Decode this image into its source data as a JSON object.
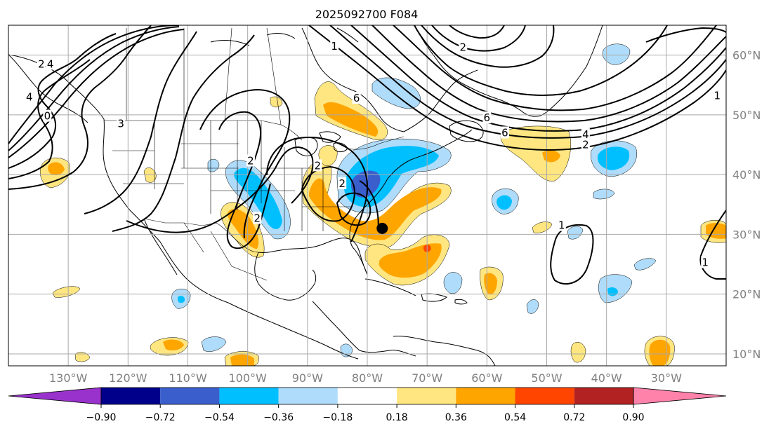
{
  "title": "2025092700 F084",
  "lon_ticks": [
    {
      "lon": -130,
      "label": "130°W"
    },
    {
      "lon": -120,
      "label": "120°W"
    },
    {
      "lon": -110,
      "label": "110°W"
    },
    {
      "lon": -100,
      "label": "100°W"
    },
    {
      "lon": -90,
      "label": "90°W"
    },
    {
      "lon": -80,
      "label": "80°W"
    },
    {
      "lon": -70,
      "label": "70°W"
    },
    {
      "lon": -60,
      "label": "60°W"
    },
    {
      "lon": -50,
      "label": "50°W"
    },
    {
      "lon": -40,
      "label": "40°W"
    },
    {
      "lon": -30,
      "label": "30°W"
    }
  ],
  "lat_ticks": [
    {
      "lat": 60,
      "label": "60°N"
    },
    {
      "lat": 50,
      "label": "50°N"
    },
    {
      "lat": 40,
      "label": "40°N"
    },
    {
      "lat": 30,
      "label": "30°N"
    },
    {
      "lat": 20,
      "label": "20°N"
    },
    {
      "lat": 10,
      "label": "10°N"
    }
  ],
  "extent": {
    "lon_min": -140,
    "lon_max": -20,
    "lat_min": 8,
    "lat_max": 65
  },
  "colorbar": {
    "levels": [
      "−0.90",
      "−0.72",
      "−0.54",
      "−0.36",
      "−0.18",
      "0.18",
      "0.36",
      "0.54",
      "0.72",
      "0.90"
    ],
    "colors": [
      "#9932cc",
      "#00008b",
      "#3a5fcd",
      "#00bfff",
      "#afdcfa",
      "#ffffff",
      "#ffe680",
      "#ffa500",
      "#ff4500",
      "#b22222",
      "#ff82ab"
    ]
  },
  "contour_labels": [
    {
      "text": "4",
      "lon": -133,
      "lat": 58.5
    },
    {
      "text": "2",
      "lon": -134.5,
      "lat": 58.5
    },
    {
      "text": "4",
      "lon": -136.5,
      "lat": 53
    },
    {
      "text": "0",
      "lon": -133.5,
      "lat": 49.8
    },
    {
      "text": "3",
      "lon": -121.2,
      "lat": 48.5
    },
    {
      "text": "2",
      "lon": -99.5,
      "lat": 42.3
    },
    {
      "text": "2",
      "lon": -98.4,
      "lat": 32.7
    },
    {
      "text": "2",
      "lon": -88.3,
      "lat": 41.5
    },
    {
      "text": "2",
      "lon": -84.2,
      "lat": 38.5
    },
    {
      "text": "6",
      "lon": -81.8,
      "lat": 52.8
    },
    {
      "text": "6",
      "lon": -60,
      "lat": 49.5
    },
    {
      "text": "6",
      "lon": -57,
      "lat": 47
    },
    {
      "text": "4",
      "lon": -43.5,
      "lat": 46.7
    },
    {
      "text": "2",
      "lon": -43.5,
      "lat": 45
    },
    {
      "text": "1",
      "lon": -21.5,
      "lat": 53.2
    },
    {
      "text": "2",
      "lon": -64,
      "lat": 61.3
    },
    {
      "text": "1",
      "lon": -47.5,
      "lat": 31.5
    },
    {
      "text": "1",
      "lon": -23.5,
      "lat": 25.3
    },
    {
      "text": "1",
      "lon": -85.5,
      "lat": 61.5
    }
  ],
  "marker": {
    "lon": -77.5,
    "lat": 31
  }
}
